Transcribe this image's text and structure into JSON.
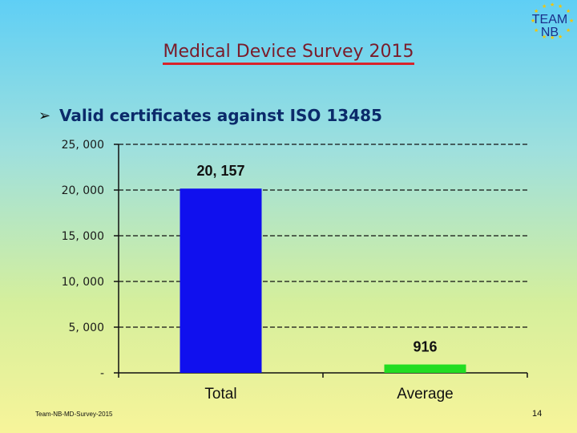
{
  "slide": {
    "title": "Medical Device Survey 2015",
    "bullet": "Valid certificates against ISO 13485",
    "logo_line1": "TEAM",
    "logo_line2": "NB",
    "footer_left": "Team-NB-MD-Survey-2015",
    "page_number": "14"
  },
  "icons": {
    "bullet": "arrow-bullet-icon",
    "logo": "team-nb-logo"
  },
  "colors": {
    "bar_total": "#1010ee",
    "bar_average": "#22dd22",
    "title": "#7a1c2a",
    "underline": "#d8232a",
    "bullet_text": "#0b2a6a"
  },
  "chart_data": {
    "type": "bar",
    "categories": [
      "Total",
      "Average"
    ],
    "values": [
      20157,
      916
    ],
    "data_labels": [
      "20, 157",
      "916"
    ],
    "ylim": [
      0,
      25000
    ],
    "yticks": [
      0,
      5000,
      10000,
      15000,
      20000,
      25000
    ],
    "ytick_labels": [
      "-",
      "5, 000",
      "10, 000",
      "15, 000",
      "20, 000",
      "25, 000"
    ],
    "grid": true,
    "title": "",
    "xlabel": "",
    "ylabel": ""
  }
}
